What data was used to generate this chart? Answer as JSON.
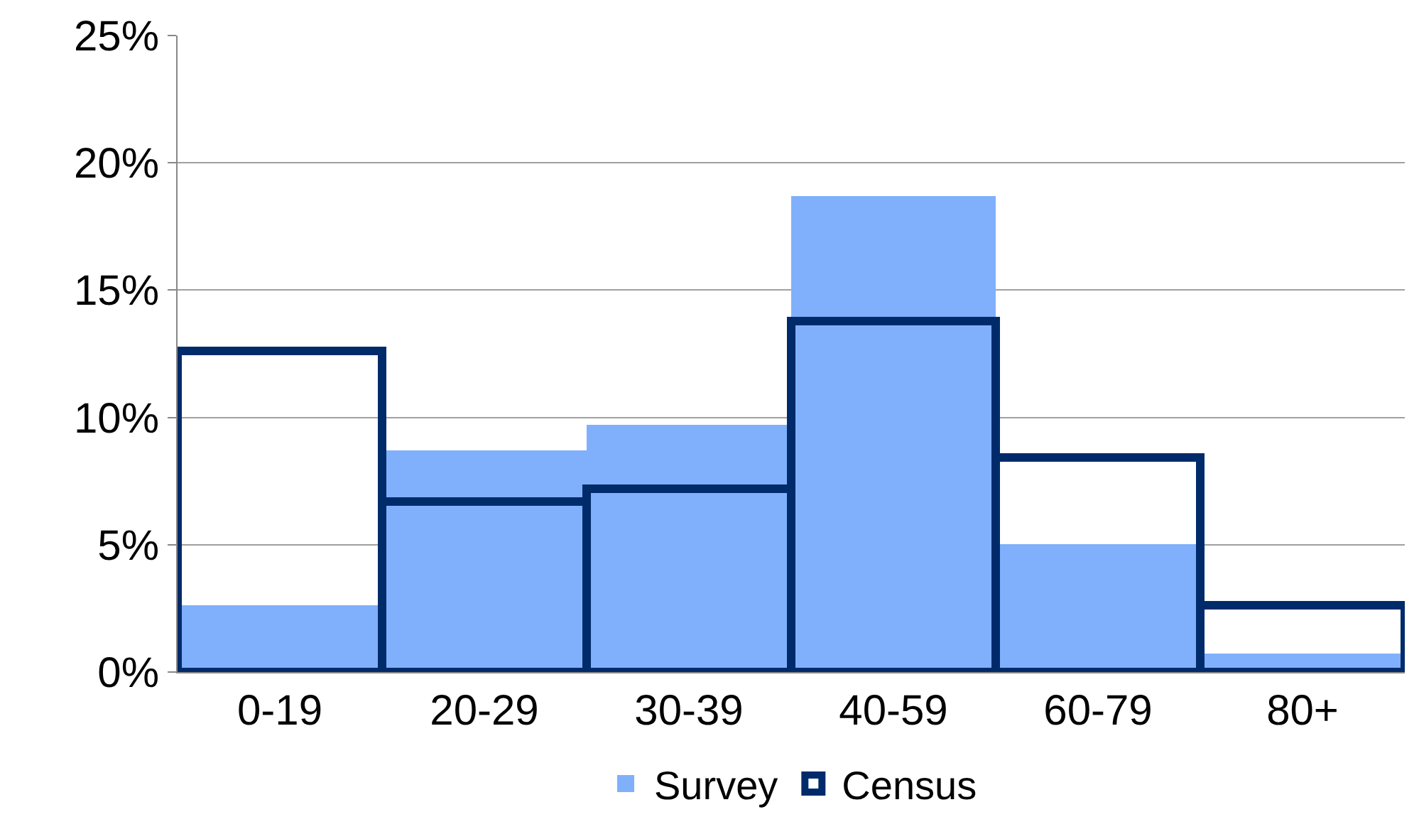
{
  "chart_data": {
    "type": "bar",
    "categories": [
      "0-19",
      "20-29",
      "30-39",
      "40-59",
      "60-79",
      "80+"
    ],
    "series": [
      {
        "name": "Survey",
        "color": "#80b0fc",
        "values": [
          2.6,
          8.7,
          9.7,
          18.7,
          5.0,
          0.7
        ]
      },
      {
        "name": "Census",
        "color": "#002b6b",
        "values": [
          12.6,
          6.7,
          7.2,
          13.8,
          8.4,
          2.6
        ]
      }
    ],
    "ylim": [
      0,
      25
    ],
    "yticks": [
      {
        "value": 0,
        "label": "0%"
      },
      {
        "value": 5,
        "label": "5%"
      },
      {
        "value": 10,
        "label": "10%"
      },
      {
        "value": 15,
        "label": "15%"
      },
      {
        "value": 20,
        "label": "20%"
      },
      {
        "value": 25,
        "label": "25%"
      }
    ],
    "grid": "y",
    "legend": "bottom"
  }
}
